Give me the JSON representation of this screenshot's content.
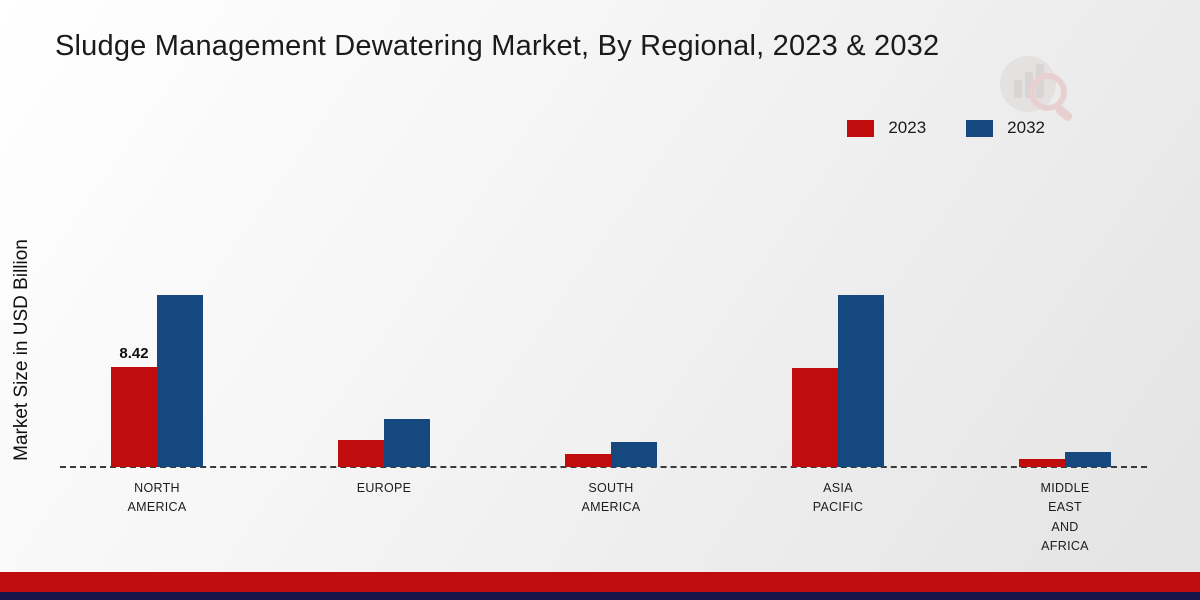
{
  "title": "Sludge Management Dewatering Market, By Regional, 2023 & 2032",
  "ylabel": "Market Size in USD Billion",
  "footer": {
    "red": "#c00c0c",
    "navy": "#15154a"
  },
  "chart_data": {
    "type": "bar",
    "title": "Sludge Management Dewatering Market, By Regional, 2023 & 2032",
    "ylabel": "Market Size in USD Billion",
    "xlabel": "",
    "ylim": [
      0,
      16
    ],
    "grid": false,
    "baseline_style": "dashed",
    "legend_position": "top-right",
    "categories": [
      "NORTH AMERICA",
      "EUROPE",
      "SOUTH AMERICA",
      "ASIA PACIFIC",
      "MIDDLE EAST AND AFRICA"
    ],
    "series": [
      {
        "name": "2023",
        "color": "#c00c0c",
        "values": [
          8.42,
          2.3,
          1.1,
          8.3,
          0.65
        ]
      },
      {
        "name": "2032",
        "color": "#15487e",
        "values": [
          14.5,
          4.0,
          2.1,
          14.5,
          1.3
        ]
      }
    ],
    "annotations": [
      {
        "category_index": 0,
        "series_index": 0,
        "text": "8.42"
      }
    ]
  }
}
